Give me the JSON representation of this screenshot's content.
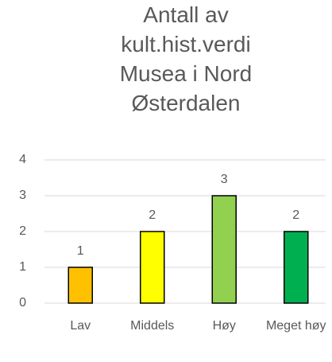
{
  "chart_data": {
    "type": "bar",
    "title": "Antall av kult.hist.verdi Musea i Nord Østerdalen",
    "categories": [
      "Lav",
      "Middels",
      "Høy",
      "Meget høy"
    ],
    "values": [
      1,
      2,
      3,
      2
    ],
    "colors": [
      "#ffc000",
      "#ffff00",
      "#92d050",
      "#00b050"
    ],
    "ylim": [
      0,
      4
    ],
    "yticks": [
      0,
      1,
      2,
      3,
      4
    ],
    "grid": true
  }
}
